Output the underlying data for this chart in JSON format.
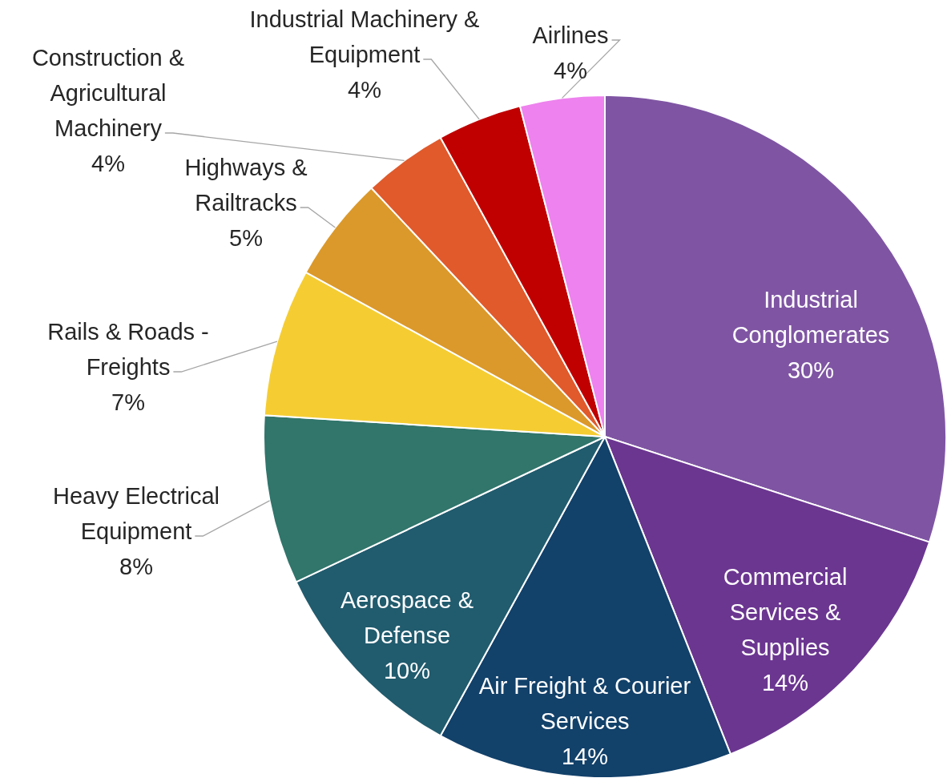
{
  "chart_data": {
    "type": "pie",
    "categories": [
      "Industrial Conglomerates",
      "Commercial Services & Supplies",
      "Air Freight & Courier Services",
      "Aerospace & Defense",
      "Heavy Electrical Equipment",
      "Rails & Roads - Freights",
      "Highways & Railtracks",
      "Construction & Agricultural Machinery",
      "Industrial Machinery & Equipment",
      "Airlines"
    ],
    "values": [
      30,
      14,
      14,
      10,
      8,
      7,
      5,
      4,
      4,
      4
    ],
    "colors": [
      "#7f55a3",
      "#6b3690",
      "#12416a",
      "#215b6e",
      "#31756b",
      "#f5cd33",
      "#db992b",
      "#e05a2c",
      "#c00000",
      "#ee82ee"
    ],
    "value_labels": [
      "30%",
      "14%",
      "14%",
      "10%",
      "8%",
      "7%",
      "5%",
      "4%",
      "4%",
      "4%"
    ],
    "legend": false
  }
}
